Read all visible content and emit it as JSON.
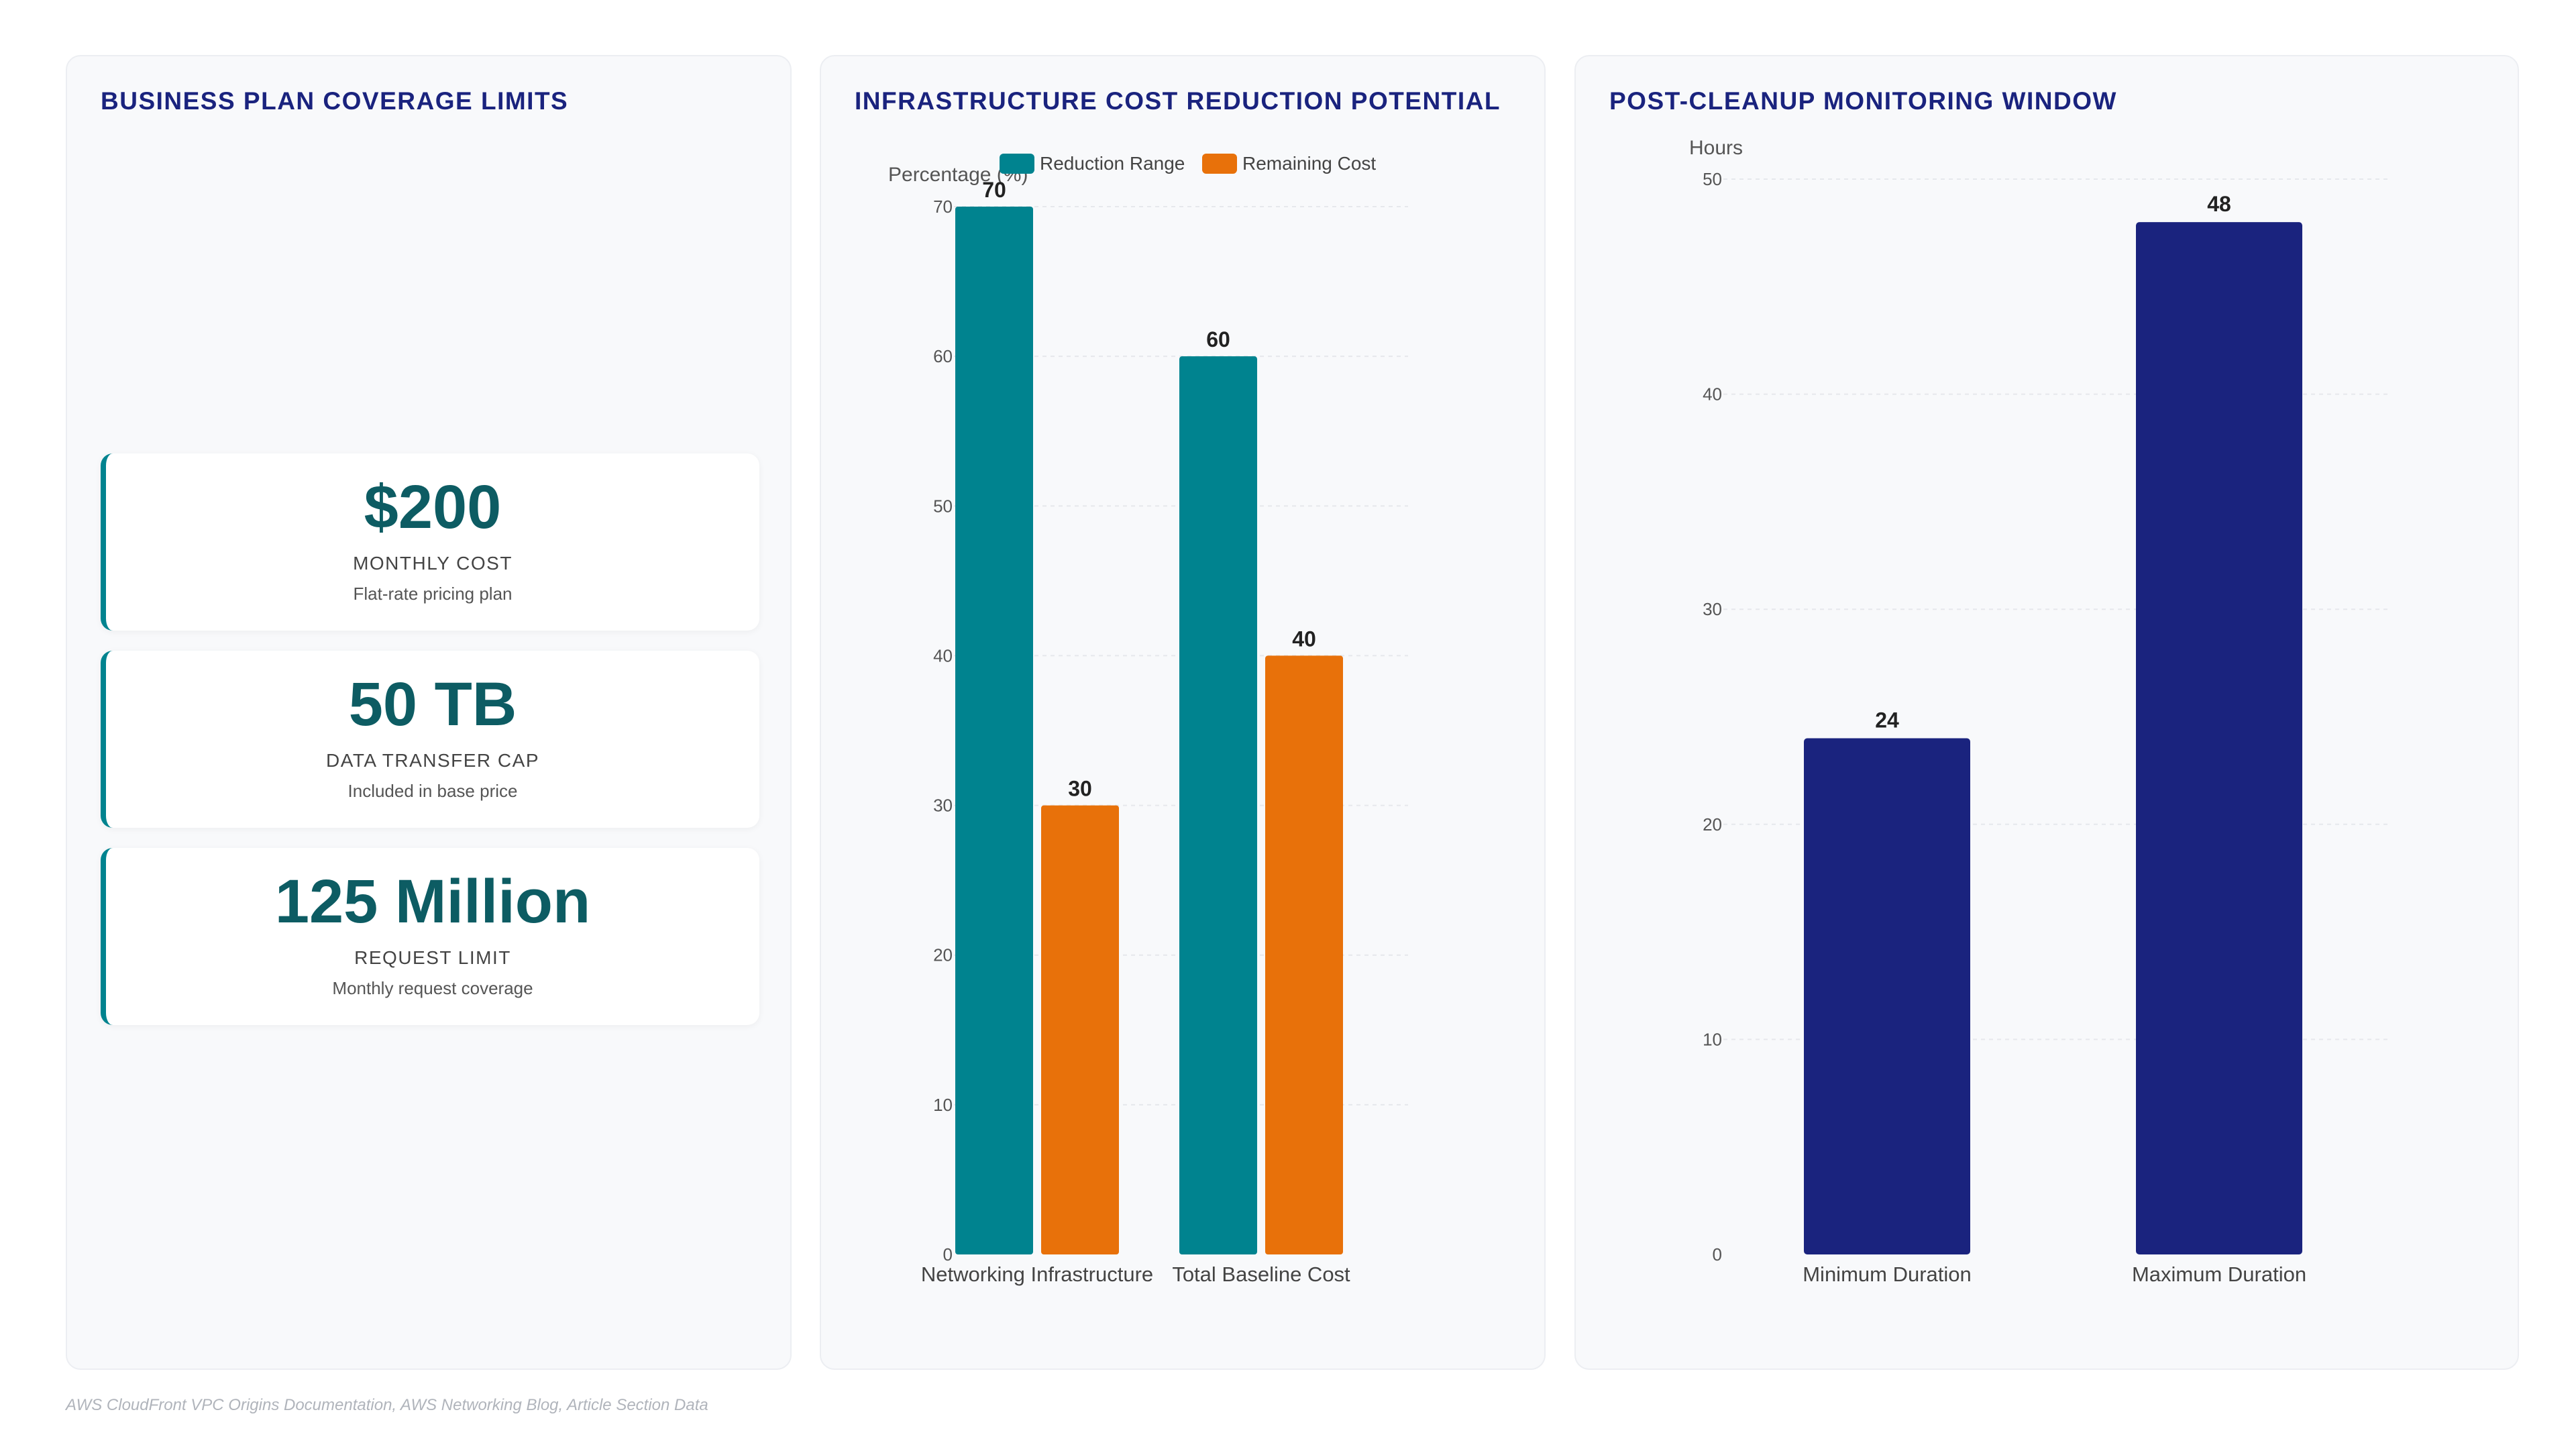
{
  "coverage": {
    "title": "BUSINESS PLAN COVERAGE LIMITS",
    "cards": [
      {
        "value": "$200",
        "label": "MONTHLY COST",
        "sub": "Flat-rate pricing plan"
      },
      {
        "value": "50 TB",
        "label": "DATA TRANSFER CAP",
        "sub": "Included in base price"
      },
      {
        "value": "125 Million",
        "label": "REQUEST LIMIT",
        "sub": "Monthly request coverage"
      }
    ]
  },
  "cost": {
    "title": "INFRASTRUCTURE COST REDUCTION POTENTIAL"
  },
  "monitor": {
    "title": "POST-CLEANUP MONITORING WINDOW"
  },
  "chart_data": [
    {
      "type": "bar",
      "title": "INFRASTRUCTURE COST REDUCTION POTENTIAL",
      "xlabel": "",
      "ylabel": "Percentage (%)",
      "categories": [
        "Networking Infrastructure",
        "Total Baseline Cost"
      ],
      "series": [
        {
          "name": "Reduction Range",
          "values": [
            70,
            60
          ],
          "color": "#00838f"
        },
        {
          "name": "Remaining Cost",
          "values": [
            30,
            40
          ],
          "color": "#e8710a"
        }
      ],
      "ylim": [
        0,
        70
      ],
      "yticks": [
        0,
        10,
        20,
        30,
        40,
        50,
        60,
        70
      ],
      "legend": "top-center",
      "grid": true
    },
    {
      "type": "bar",
      "title": "POST-CLEANUP MONITORING WINDOW",
      "xlabel": "",
      "ylabel": "Hours",
      "categories": [
        "Minimum Duration",
        "Maximum Duration"
      ],
      "values": [
        24,
        48
      ],
      "color": "#1a237e",
      "ylim": [
        0,
        50
      ],
      "yticks": [
        0,
        10,
        20,
        30,
        40,
        50
      ],
      "grid": true
    }
  ],
  "source": "AWS CloudFront VPC Origins Documentation, AWS Networking Blog, Article Section Data"
}
